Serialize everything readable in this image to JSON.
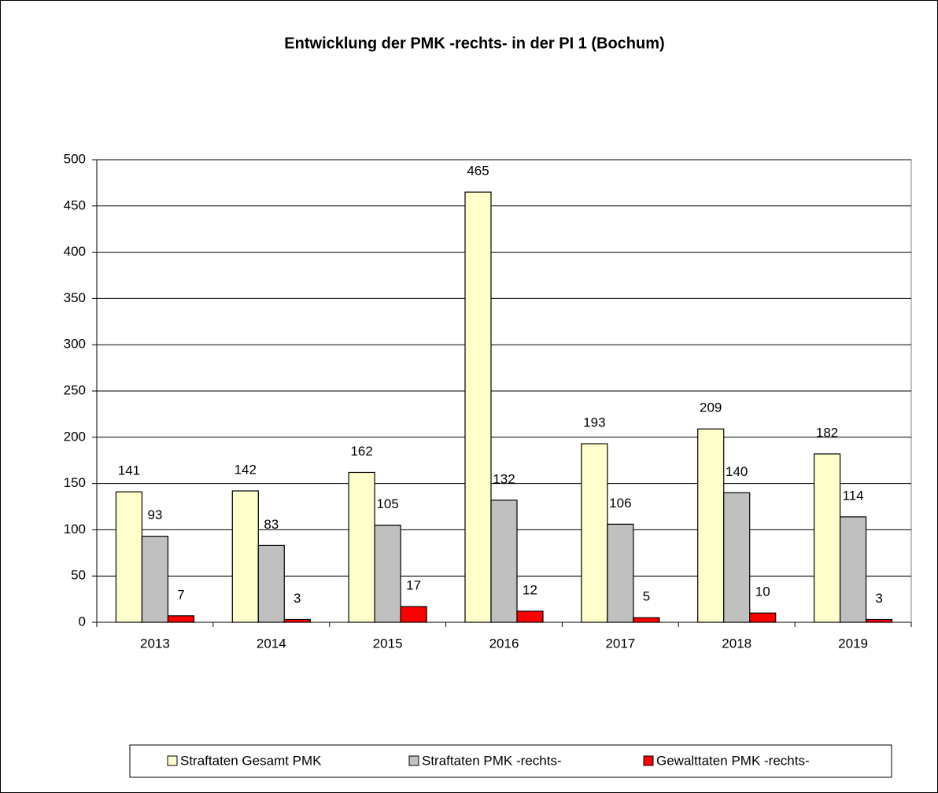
{
  "chart_data": {
    "type": "bar",
    "title": "Entwicklung der PMK -rechts- in der PI 1 (Bochum)",
    "categories": [
      "2013",
      "2014",
      "2015",
      "2016",
      "2017",
      "2018",
      "2019"
    ],
    "series": [
      {
        "name": "Straftaten Gesamt PMK",
        "color": "#ffffcc",
        "values": [
          141,
          142,
          162,
          465,
          193,
          209,
          182
        ]
      },
      {
        "name": "Straftaten PMK -rechts-",
        "color": "#c0c0c0",
        "values": [
          93,
          83,
          105,
          132,
          106,
          140,
          114
        ]
      },
      {
        "name": "Gewalttaten PMK -rechts-",
        "color": "#ff0000",
        "values": [
          7,
          3,
          17,
          12,
          5,
          10,
          3
        ]
      }
    ],
    "ylim": [
      0,
      500
    ],
    "yticks": [
      0,
      50,
      100,
      150,
      200,
      250,
      300,
      350,
      400,
      450,
      500
    ],
    "grid": true,
    "legend": "bottom"
  }
}
